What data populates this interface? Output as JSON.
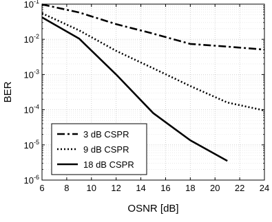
{
  "chart_data": {
    "type": "line",
    "xlabel": "OSNR [dB]",
    "ylabel": "BER",
    "xlim": [
      6,
      24
    ],
    "ylim": [
      1e-06,
      0.1
    ],
    "yscale": "log",
    "grid": true,
    "legend_position": "bottom-left",
    "x_ticks": [
      6,
      8,
      10,
      12,
      14,
      16,
      18,
      20,
      22,
      24
    ],
    "y_tick_labels": [
      {
        "base": "10",
        "exp": "-6",
        "value": 1e-06
      },
      {
        "base": "10",
        "exp": "-5",
        "value": 1e-05
      },
      {
        "base": "10",
        "exp": "-4",
        "value": 0.0001
      },
      {
        "base": "10",
        "exp": "-3",
        "value": 0.001
      },
      {
        "base": "10",
        "exp": "-2",
        "value": 0.01
      },
      {
        "base": "10",
        "exp": "-1",
        "value": 0.1
      }
    ],
    "series": [
      {
        "name": "3  dB CSPR",
        "style": "dashdot",
        "x": [
          6,
          9,
          12,
          15,
          18,
          21,
          24
        ],
        "y": [
          0.098,
          0.058,
          0.027,
          0.0145,
          0.0074,
          0.0062,
          0.0051
        ]
      },
      {
        "name": "9  dB CSPR",
        "style": "dotted",
        "x": [
          6,
          9,
          12,
          15,
          18,
          21,
          24
        ],
        "y": [
          0.055,
          0.018,
          0.0047,
          0.0015,
          0.00047,
          0.00016,
          9.5e-05
        ]
      },
      {
        "name": "18 dB CSPR",
        "style": "solid",
        "x": [
          6,
          9,
          12,
          15,
          18,
          21
        ],
        "y": [
          0.042,
          0.0105,
          0.001,
          8e-05,
          1.35e-05,
          3.5e-06
        ]
      }
    ]
  }
}
